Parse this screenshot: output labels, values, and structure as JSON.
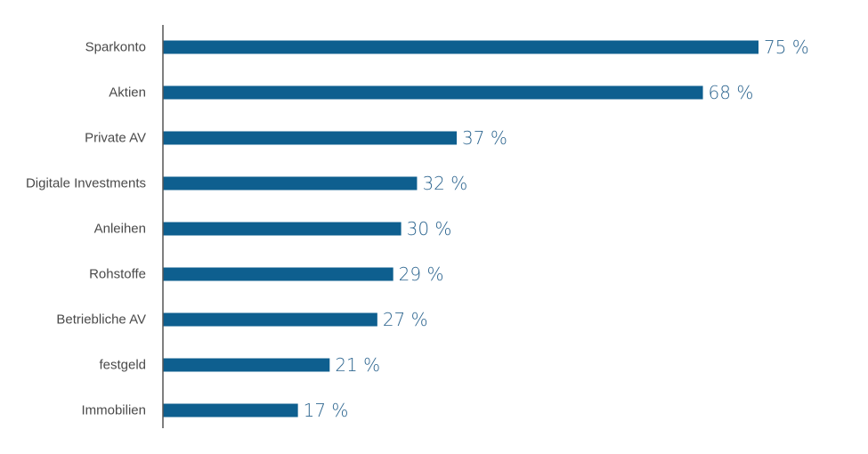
{
  "colors": {
    "bar": "#0e5f8f",
    "axis": "#555555",
    "category_text": "#4a4a4a",
    "value_text": "#2e6690"
  },
  "chart_data": {
    "type": "bar",
    "orientation": "horizontal",
    "categories": [
      "Sparkonto",
      "Aktien",
      "Private AV",
      "Digitale Investments",
      "Anleihen",
      "Rohstoffe",
      "Betriebliche AV",
      "festgeld",
      "Immobilien"
    ],
    "values": [
      75,
      68,
      37,
      32,
      30,
      29,
      27,
      21,
      17
    ],
    "value_labels": [
      "75 %",
      "68 %",
      "37 %",
      "32 %",
      "30 %",
      "29 %",
      "27 %",
      "21 %",
      "17 %"
    ],
    "xlim": [
      0,
      75
    ],
    "grid": false,
    "legend": "none"
  }
}
